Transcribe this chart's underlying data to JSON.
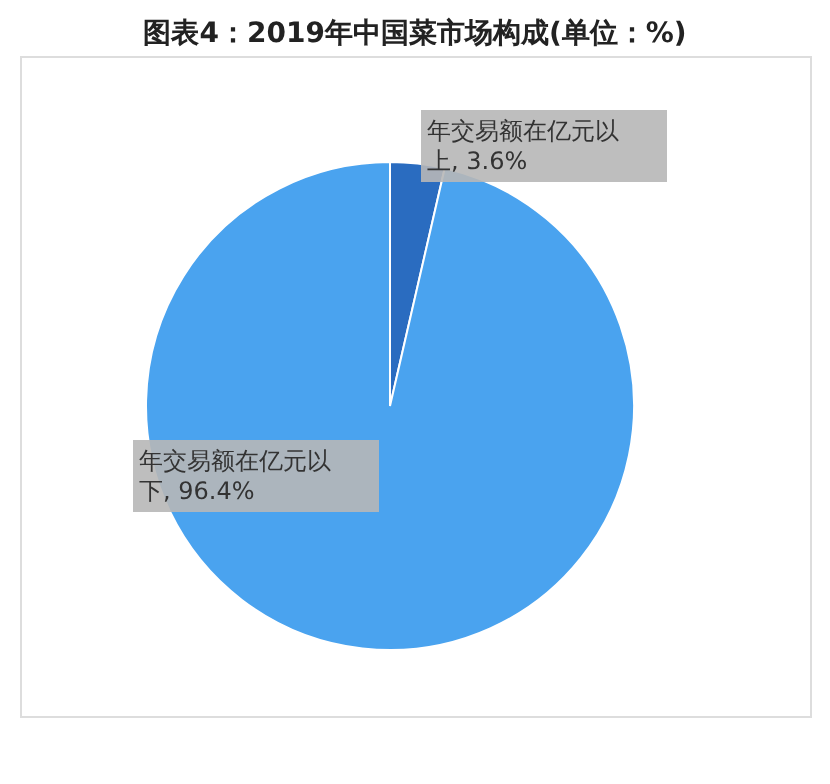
{
  "chart_data": {
    "type": "pie",
    "title": "图表4：2019年中国菜市场构成(单位：%)",
    "categories": [
      "年交易额在亿元以上",
      "年交易额在亿元以下"
    ],
    "values": [
      3.6,
      96.4
    ],
    "colors": [
      "#2a6cc0",
      "#4aa3ef"
    ],
    "value_labels": [
      "3.6%",
      "96.4%"
    ],
    "legend": false
  }
}
